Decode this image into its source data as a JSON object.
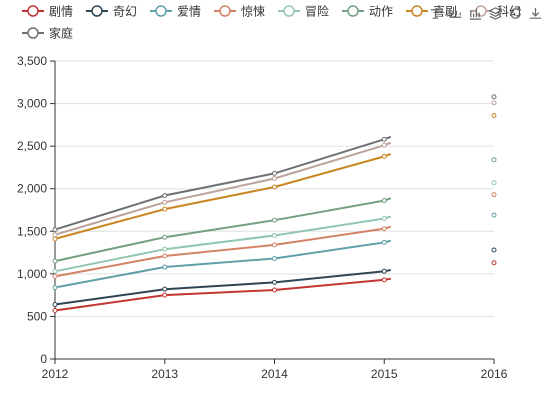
{
  "toolbar": {
    "icons": [
      "text-icon",
      "grid-table-icon",
      "line-chart-icon",
      "bar-chart-icon",
      "stack-icon",
      "restore-icon",
      "save-download-icon"
    ]
  },
  "chart_data": {
    "type": "line",
    "title": "",
    "xlabel": "",
    "ylabel": "",
    "x": [
      "2012",
      "2013",
      "2014",
      "2015",
      "2016"
    ],
    "ylim": [
      0,
      3500
    ],
    "yticks": [
      "0",
      "500",
      "1,000",
      "1,500",
      "2,000",
      "2,500",
      "3,000",
      "3,500"
    ],
    "grid": true,
    "legend_position": "top",
    "series": [
      {
        "name": "剧情",
        "color": "#c23531",
        "values": [
          570,
          750,
          810,
          930,
          1130
        ]
      },
      {
        "name": "奇幻",
        "color": "#2f4554",
        "values": [
          640,
          820,
          900,
          1030,
          1280
        ]
      },
      {
        "name": "爱情",
        "color": "#61a0a8",
        "values": [
          840,
          1080,
          1180,
          1370,
          1690
        ]
      },
      {
        "name": "惊悚",
        "color": "#d48265",
        "values": [
          970,
          1210,
          1340,
          1530,
          1930
        ]
      },
      {
        "name": "冒险",
        "color": "#91c7ae",
        "values": [
          1030,
          1290,
          1450,
          1650,
          2070
        ]
      },
      {
        "name": "动作",
        "color": "#749f83",
        "values": [
          1150,
          1430,
          1630,
          1860,
          2340
        ]
      },
      {
        "name": "喜剧",
        "color": "#ca8622",
        "values": [
          1410,
          1760,
          2020,
          2380,
          2860
        ]
      },
      {
        "name": "科幻",
        "color": "#bda29a",
        "values": [
          1460,
          1840,
          2120,
          2510,
          3010
        ]
      },
      {
        "name": "家庭",
        "color": "#6e7074",
        "values": [
          1520,
          1920,
          2180,
          2580,
          3080
        ]
      }
    ]
  }
}
